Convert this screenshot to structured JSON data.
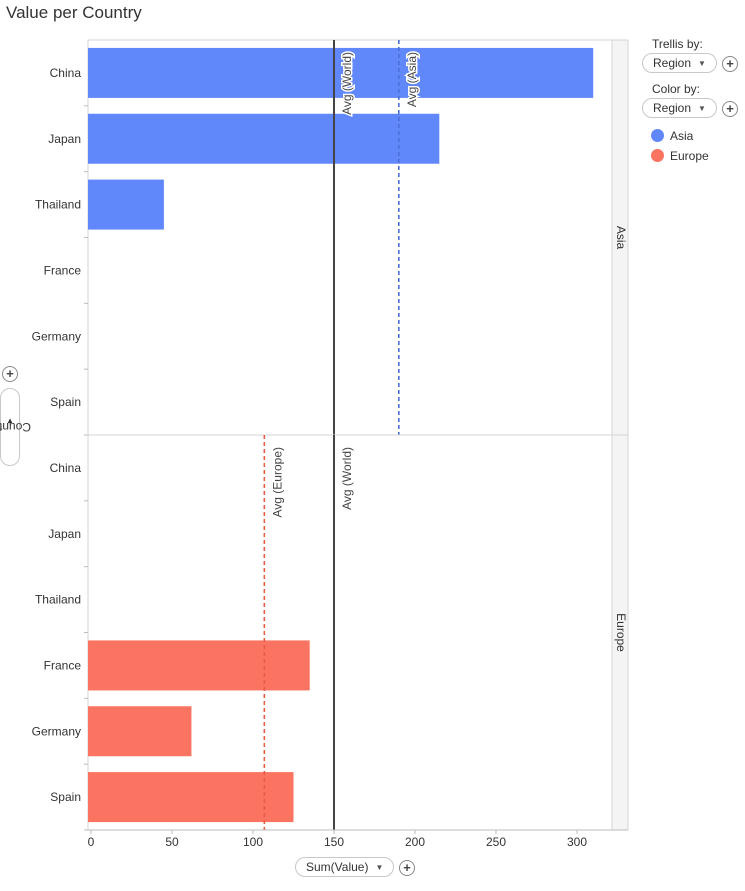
{
  "title": "Value per Country",
  "controls": {
    "trellis_label": "Trellis by:",
    "trellis_value": "Region",
    "color_label": "Color by:",
    "color_value": "Region",
    "x_axis_selector": "Sum(Value)",
    "y_axis_selector": "Country"
  },
  "legend": [
    {
      "label": "Asia",
      "color": "#6188fa"
    },
    {
      "label": "Europe",
      "color": "#fa7461"
    }
  ],
  "chart_data": {
    "type": "bar",
    "orientation": "horizontal",
    "title": "Value per Country",
    "xlabel": "Sum(Value)",
    "ylabel": "Country",
    "xlim": [
      0,
      330
    ],
    "xticks": [
      0,
      50,
      100,
      150,
      200,
      250,
      300
    ],
    "categories": [
      "China",
      "Japan",
      "Thailand",
      "France",
      "Germany",
      "Spain"
    ],
    "panels": [
      {
        "name": "Asia",
        "color": "#6188fa",
        "values": [
          310,
          215,
          45,
          null,
          null,
          null
        ],
        "ref_lines": [
          {
            "label": "Avg (World)",
            "value": 150,
            "style": "solid",
            "color": "#444444"
          },
          {
            "label": "Avg (Asia)",
            "value": 190,
            "style": "dashed",
            "color": "#4d6fd8"
          }
        ]
      },
      {
        "name": "Europe",
        "color": "#fa7461",
        "values": [
          null,
          null,
          null,
          135,
          62,
          125
        ],
        "ref_lines": [
          {
            "label": "Avg (Europe)",
            "value": 107,
            "style": "dashed",
            "color": "#e85c45"
          },
          {
            "label": "Avg (World)",
            "value": 150,
            "style": "solid",
            "color": "#444444"
          }
        ]
      }
    ]
  }
}
